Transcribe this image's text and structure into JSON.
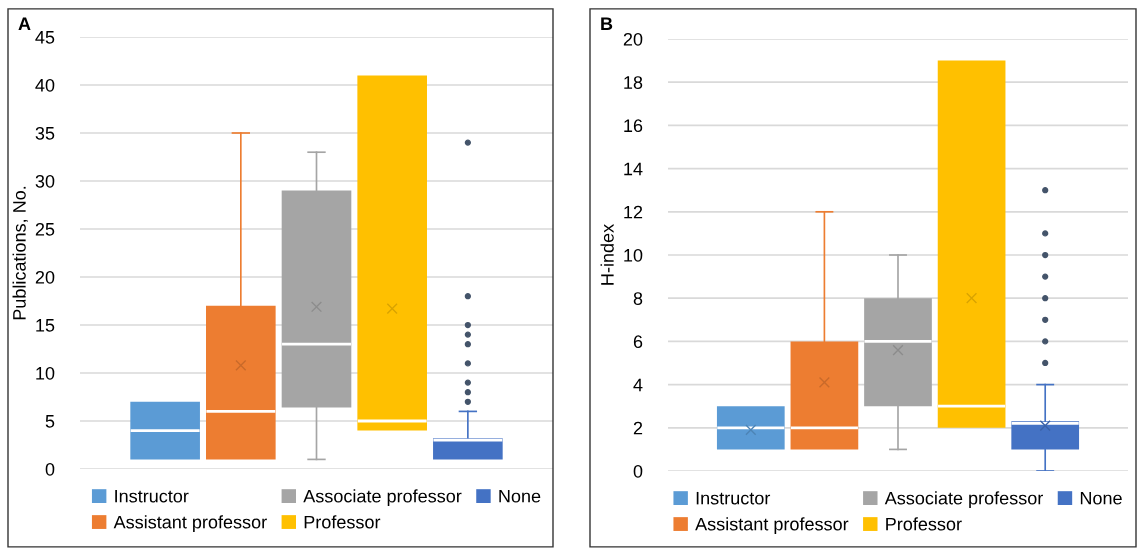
{
  "chart_data": [
    {
      "type": "box",
      "annotations": [
        "A"
      ],
      "ylabel": "Publications, No.",
      "categories": [
        null
      ],
      "ylim": [
        0,
        45
      ],
      "yticks": [
        0,
        5,
        10,
        15,
        20,
        25,
        30,
        35,
        40,
        45
      ],
      "grid": "y",
      "legend": "bottom",
      "tick_labels": "y",
      "series": [
        {
          "name": "Instructor",
          "color": "#5b9bd5",
          "boxes": [
            {
              "low": 1,
              "q1": 1,
              "median": 4,
              "q3": 7,
              "high": 7
            }
          ]
        },
        {
          "name": "Assistant professor",
          "color": "#ed7d31",
          "boxes": [
            {
              "low": 1,
              "q1": 1,
              "median": 6,
              "q3": 17,
              "high": 35,
              "mean": 10.8
            }
          ]
        },
        {
          "name": "Associate professor",
          "color": "#a5a5a5",
          "boxes": [
            {
              "low": 1,
              "q1": 6.4,
              "median": 13,
              "q3": 29,
              "high": 33,
              "mean": 16.9
            }
          ]
        },
        {
          "name": "Professor",
          "color": "#ffc000",
          "boxes": [
            {
              "low": 4,
              "q1": 4,
              "median": 5,
              "q3": 41,
              "high": 41,
              "mean": 16.7
            }
          ]
        },
        {
          "name": "None",
          "color": "#4472c4",
          "boxes": [
            {
              "low": 1,
              "q1": 1,
              "median": 3,
              "q3": 3.2,
              "high": 6,
              "outliers": [
                7,
                8,
                9,
                11,
                13,
                14,
                15,
                18,
                34
              ]
            }
          ]
        }
      ]
    },
    {
      "type": "box",
      "annotations": [
        "B"
      ],
      "ylabel": "H-index",
      "categories": [
        null
      ],
      "ylim": [
        0,
        20
      ],
      "yticks": [
        0,
        2,
        4,
        6,
        8,
        10,
        12,
        14,
        16,
        18,
        20
      ],
      "grid": "y",
      "legend": "bottom",
      "tick_labels": "y",
      "series": [
        {
          "name": "Instructor",
          "color": "#5b9bd5",
          "boxes": [
            {
              "low": 1,
              "q1": 1,
              "median": 2,
              "q3": 3,
              "high": 3,
              "mean": 1.9
            }
          ]
        },
        {
          "name": "Assistant professor",
          "color": "#ed7d31",
          "boxes": [
            {
              "low": 1,
              "q1": 1,
              "median": 2,
              "q3": 6,
              "high": 12,
              "mean": 4.1
            }
          ]
        },
        {
          "name": "Associate professor",
          "color": "#a5a5a5",
          "boxes": [
            {
              "low": 1,
              "q1": 3,
              "median": 6,
              "q3": 8,
              "high": 10,
              "mean": 5.6
            }
          ]
        },
        {
          "name": "Professor",
          "color": "#ffc000",
          "boxes": [
            {
              "low": 2,
              "q1": 2,
              "median": 3,
              "q3": 19,
              "high": 19,
              "mean": 8
            }
          ]
        },
        {
          "name": "None",
          "color": "#4472c4",
          "boxes": [
            {
              "low": 0,
              "q1": 1,
              "median": 2.2,
              "q3": 2.3,
              "high": 4,
              "mean": 2.1,
              "outliers": [
                5,
                6,
                7,
                8,
                9,
                10,
                11,
                13
              ]
            }
          ]
        }
      ]
    }
  ]
}
